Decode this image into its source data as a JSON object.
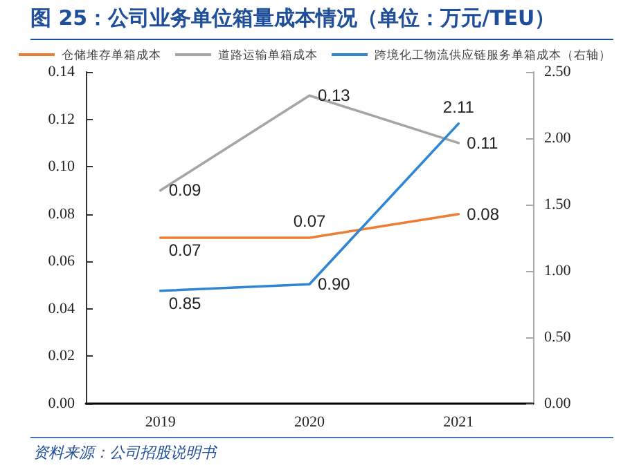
{
  "chart_data": {
    "type": "line",
    "title": "图 25：公司业务单位箱量成本情况（单位：万元/TEU）",
    "annotations": [
      "资料来源：公司招股说明书"
    ],
    "categories": [
      "2019",
      "2020",
      "2021"
    ],
    "series": [
      {
        "name": "仓储堆存单箱成本",
        "color": "#ed7d31",
        "values": [
          0.07,
          0.07,
          0.08
        ],
        "value_labels": [
          "0.07",
          "0.07",
          "0.08"
        ]
      },
      {
        "name": "道路运输单箱成本",
        "color": "#a5a5a5",
        "values": [
          0.09,
          0.13,
          0.11
        ],
        "value_labels": [
          "0.09",
          "0.13",
          "0.11"
        ]
      },
      {
        "name": "跨境化工物流供应链服务单箱成本（右轴）",
        "color": "#2e86d4",
        "axis": "y2",
        "values": [
          0.85,
          0.9,
          2.11
        ],
        "value_labels": [
          "0.85",
          "0.90",
          "2.11"
        ]
      }
    ],
    "ylim": [
      0,
      0.14
    ],
    "yticks": [
      {
        "value": 0,
        "label": "0.00"
      },
      {
        "value": 0.02,
        "label": "0.02"
      },
      {
        "value": 0.04,
        "label": "0.04"
      },
      {
        "value": 0.06,
        "label": "0.06"
      },
      {
        "value": 0.08,
        "label": "0.08"
      },
      {
        "value": 0.1,
        "label": "0.10"
      },
      {
        "value": 0.12,
        "label": "0.12"
      },
      {
        "value": 0.14,
        "label": "0.14"
      }
    ],
    "y2lim": [
      0,
      2.5
    ],
    "y2ticks": [
      {
        "value": 0,
        "label": "0.00"
      },
      {
        "value": 0.5,
        "label": "0.50"
      },
      {
        "value": 1,
        "label": "1.00"
      },
      {
        "value": 1.5,
        "label": "1.50"
      },
      {
        "value": 2,
        "label": "2.00"
      },
      {
        "value": 2.5,
        "label": "2.50"
      }
    ],
    "grid": false,
    "legend": "top",
    "marker": "none",
    "line_style": "solid"
  }
}
